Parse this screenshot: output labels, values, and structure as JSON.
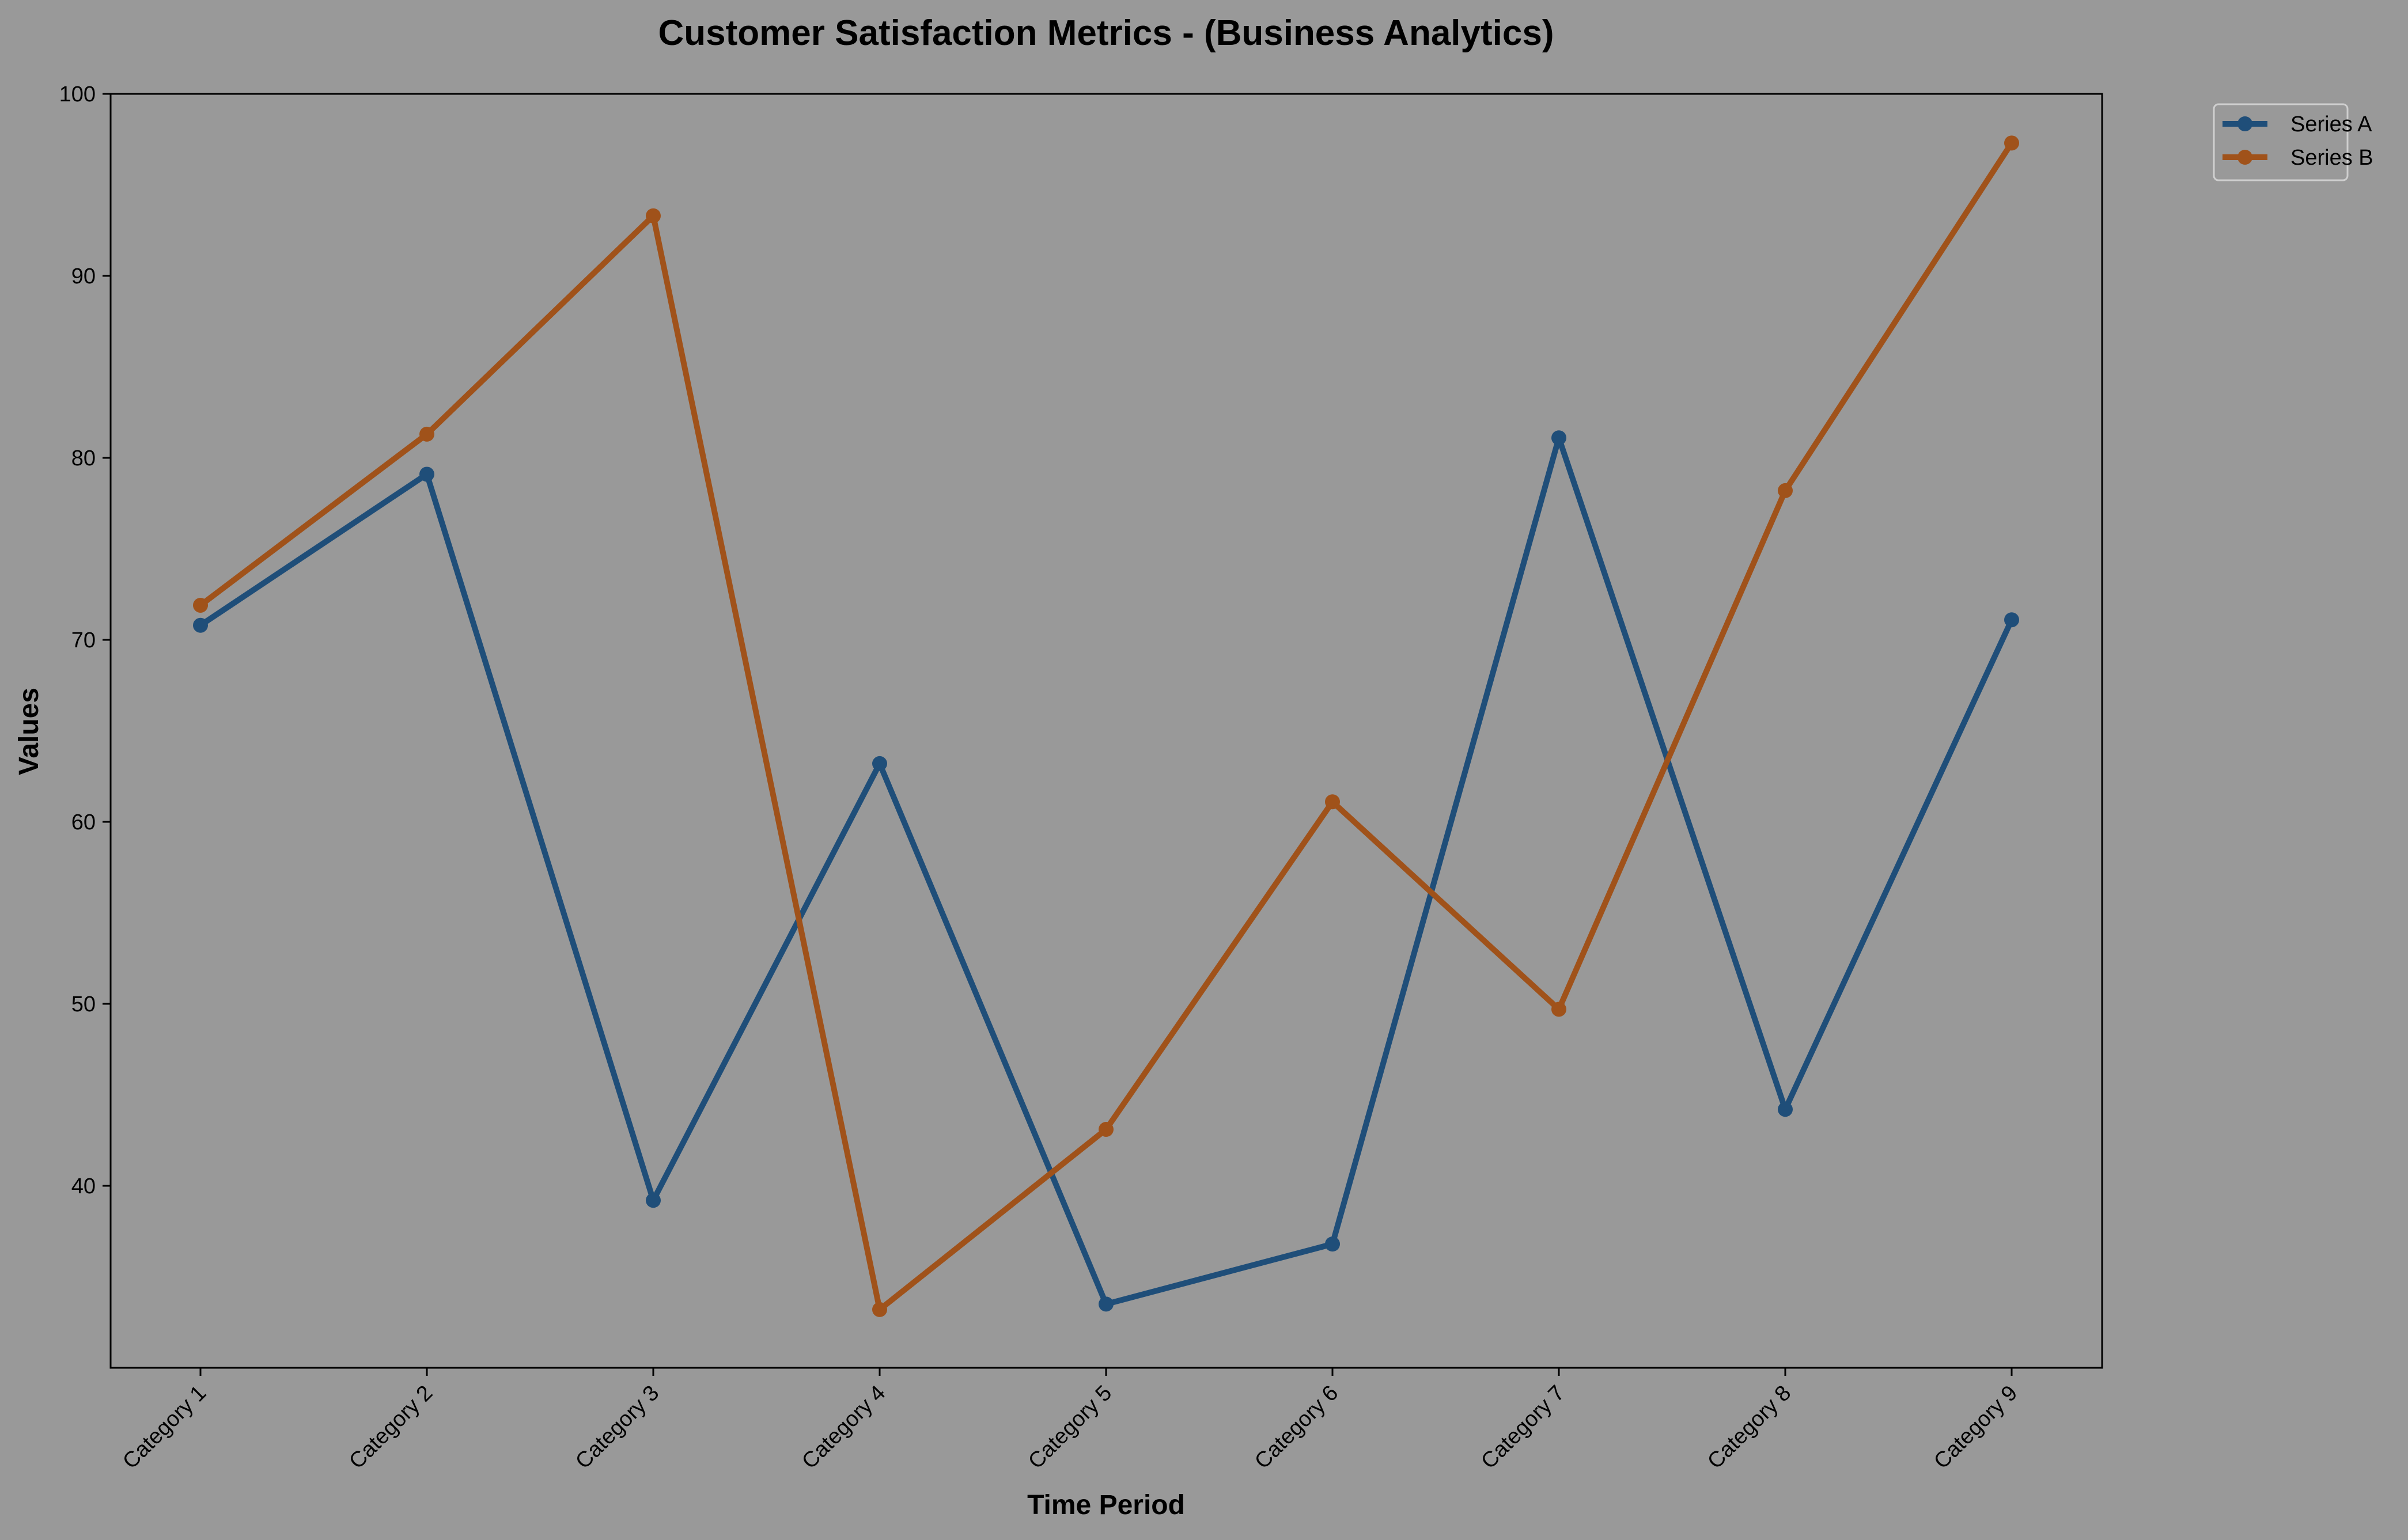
{
  "chart_data": {
    "type": "line",
    "title": "Customer Satisfaction Metrics - (Business Analytics)",
    "xlabel": "Time Period",
    "ylabel": "Values",
    "categories": [
      "Category 1",
      "Category 2",
      "Category 3",
      "Category 4",
      "Category 5",
      "Category 6",
      "Category 7",
      "Category 8",
      "Category 9"
    ],
    "ylim": [
      30,
      100
    ],
    "yticks": [
      40,
      50,
      60,
      70,
      80,
      90,
      100
    ],
    "grid": false,
    "legend_position": "outside-top-right",
    "series": [
      {
        "name": "Series A",
        "color": "#1f4e79",
        "values": [
          70.8,
          79.1,
          39.2,
          63.2,
          33.5,
          36.8,
          81.1,
          44.2,
          71.1
        ]
      },
      {
        "name": "Series B",
        "color": "#a0521a",
        "values": [
          71.9,
          81.3,
          93.3,
          33.2,
          43.1,
          61.1,
          49.7,
          78.2,
          97.3
        ]
      }
    ],
    "colors": {
      "background": "#999999",
      "plot_background": "#999999",
      "axes": "#000000"
    }
  }
}
